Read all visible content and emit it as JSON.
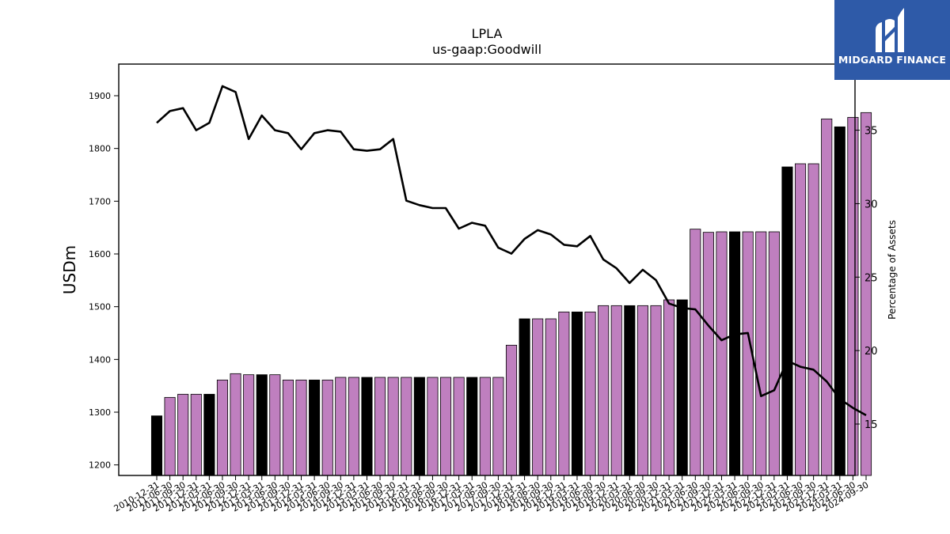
{
  "chart_data": {
    "type": "bar",
    "title": "LPLA",
    "subtitle": "us-gaap:Goodwill",
    "ylabel": "USDm",
    "y2label": "Percentage of Assets",
    "ylim": [
      1180,
      1960
    ],
    "y2lim": [
      11.5,
      39.5
    ],
    "yticks": [
      1200,
      1300,
      1400,
      1500,
      1600,
      1700,
      1800,
      1900
    ],
    "y2ticks": [
      15,
      20,
      25,
      30,
      35
    ],
    "categories": [
      "2010-12-31",
      "2011-06-30",
      "2011-09-30",
      "2011-12-31",
      "2012-03-31",
      "2012-06-30",
      "2012-09-30",
      "2012-12-31",
      "2013-03-31",
      "2013-06-30",
      "2013-09-30",
      "2013-12-31",
      "2014-03-31",
      "2014-06-30",
      "2014-09-30",
      "2014-12-31",
      "2015-03-31",
      "2015-06-30",
      "2015-09-30",
      "2015-12-31",
      "2016-03-31",
      "2016-06-30",
      "2016-09-30",
      "2016-12-31",
      "2017-03-31",
      "2017-06-30",
      "2017-09-30",
      "2017-12-31",
      "2018-03-31",
      "2018-06-30",
      "2018-09-30",
      "2018-12-31",
      "2019-03-31",
      "2019-06-30",
      "2019-09-30",
      "2019-12-31",
      "2020-03-31",
      "2020-06-30",
      "2020-09-30",
      "2020-12-31",
      "2021-03-31",
      "2021-06-30",
      "2021-09-30",
      "2021-12-31",
      "2022-03-31",
      "2022-06-30",
      "2022-09-30",
      "2022-12-31",
      "2023-03-31",
      "2023-06-30",
      "2023-09-30",
      "2023-12-31",
      "2024-03-31",
      "2024-06-30",
      "2024-09-30"
    ],
    "series": [
      {
        "name": "Goodwill",
        "kind": "bar",
        "values": [
          1293,
          1328,
          1334,
          1334,
          1334,
          1361,
          1373,
          1371,
          1371,
          1371,
          1361,
          1361,
          1361,
          1361,
          1366,
          1366,
          1366,
          1366,
          1366,
          1366,
          1366,
          1366,
          1366,
          1366,
          1366,
          1366,
          1366,
          1427,
          1477,
          1477,
          1477,
          1490,
          1490,
          1490,
          1502,
          1502,
          1502,
          1502,
          1502,
          1513,
          1513,
          1647,
          1641,
          1642,
          1642,
          1642,
          1642,
          1642,
          1765,
          1771,
          1771,
          1856,
          1841,
          1859,
          1868
        ]
      },
      {
        "name": "Percentage of Assets",
        "kind": "line",
        "axis": "right",
        "values": [
          35.5,
          36.3,
          36.5,
          35.0,
          35.5,
          38.0,
          37.6,
          34.4,
          36.0,
          35.0,
          34.8,
          33.7,
          34.8,
          35.0,
          34.9,
          33.7,
          33.6,
          33.7,
          34.4,
          30.2,
          29.9,
          29.7,
          29.7,
          28.3,
          28.7,
          28.5,
          27.0,
          26.6,
          27.6,
          28.2,
          27.9,
          27.2,
          27.1,
          27.8,
          26.2,
          25.6,
          24.6,
          25.5,
          24.8,
          23.2,
          22.9,
          22.8,
          21.7,
          20.7,
          21.1,
          21.2,
          16.9,
          17.3,
          19.3,
          18.9,
          18.7,
          17.9,
          16.7,
          16.1,
          15.6
        ]
      }
    ],
    "highlight_color": "#000000",
    "bar_color": "#bf7fbf",
    "line_color": "#000000"
  },
  "logo": {
    "text": "MIDGARD FINANCE",
    "bg_color": "#2e5aa8"
  }
}
